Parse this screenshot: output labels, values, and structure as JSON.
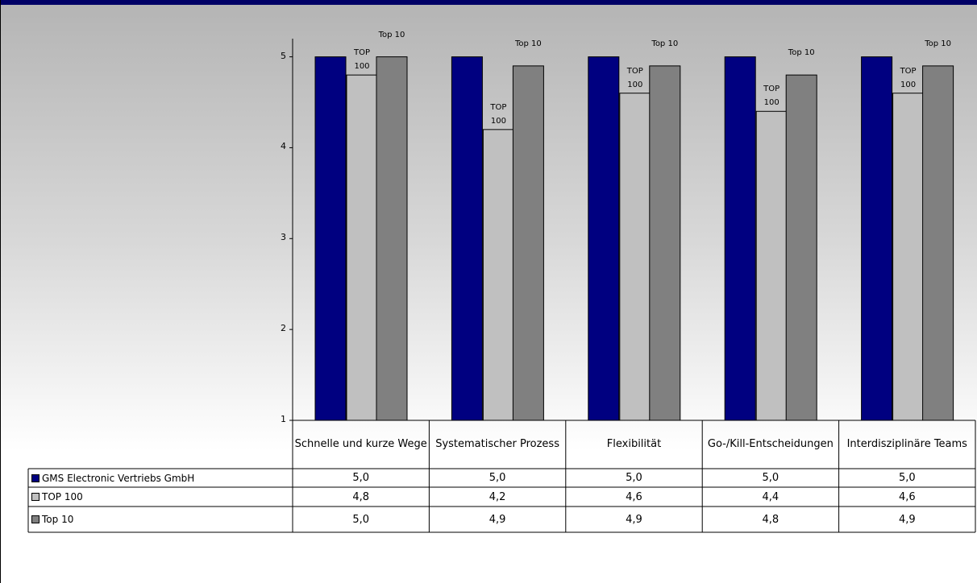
{
  "chart_data": {
    "type": "bar",
    "categories": [
      "Schnelle und kurze Wege",
      "Systematischer Prozess",
      "Flexibilität",
      "Go-/Kill-Entscheidungen",
      "Interdisziplinäre Teams"
    ],
    "series": [
      {
        "name": "GMS Electronic Vertriebs GmbH",
        "color": "#000080",
        "values": [
          5.0,
          5.0,
          5.0,
          5.0,
          5.0
        ],
        "value_labels": [
          "5,0",
          "5,0",
          "5,0",
          "5,0",
          "5,0"
        ]
      },
      {
        "name": "TOP 100",
        "color": "#c0c0c0",
        "values": [
          4.8,
          4.2,
          4.6,
          4.4,
          4.6
        ],
        "value_labels": [
          "4,8",
          "4,2",
          "4,6",
          "4,4",
          "4,6"
        ]
      },
      {
        "name": "Top 10",
        "color": "#808080",
        "values": [
          5.0,
          4.9,
          4.9,
          4.8,
          4.9
        ],
        "value_labels": [
          "5,0",
          "4,9",
          "4,9",
          "4,8",
          "4,9"
        ]
      }
    ],
    "ylim": [
      1,
      5.2
    ],
    "yticks": [
      1,
      2,
      3,
      4,
      5
    ]
  }
}
